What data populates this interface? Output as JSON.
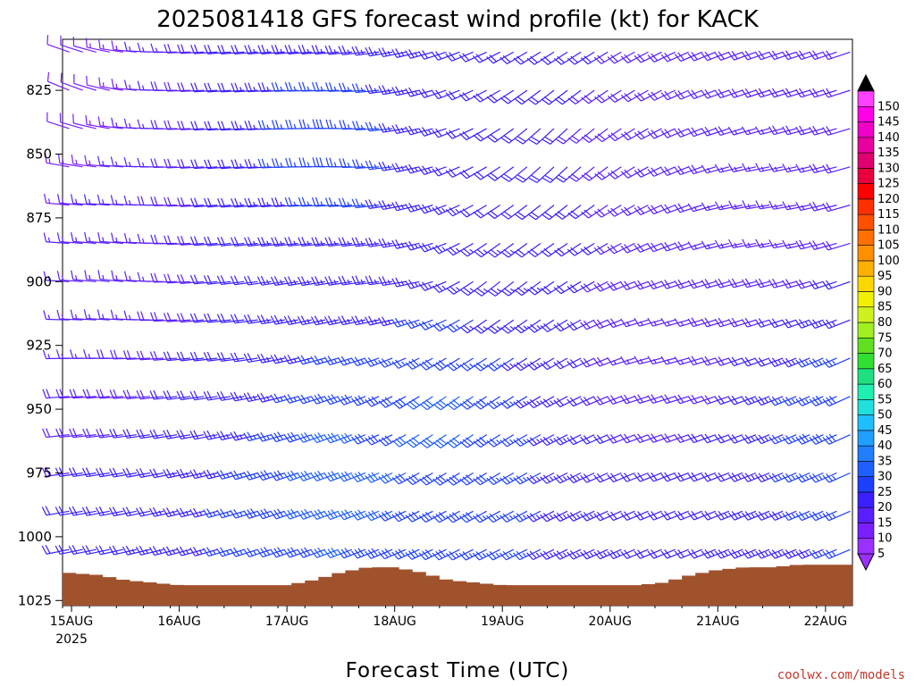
{
  "chart_data": {
    "type": "wind-barb-timeheight",
    "title": "2025081418 GFS forecast wind profile (kt) for KACK",
    "xlabel": "Forecast Time (UTC)",
    "ylabel": "",
    "credit": "coolwx.com/models",
    "y_axis": {
      "units": "hPa",
      "inverted": true,
      "range": [
        1027,
        805
      ],
      "tick_labels": [
        "825",
        "850",
        "875",
        "900",
        "925",
        "950",
        "975",
        "1000",
        "1025"
      ],
      "tick_values": [
        825,
        850,
        875,
        900,
        925,
        950,
        975,
        1000,
        1025
      ]
    },
    "x_axis": {
      "units": "UTC date",
      "range_days": [
        "2025-08-14T22:00Z",
        "2025-08-22T06:00Z"
      ],
      "tick_labels": [
        "15AUG",
        "16AUG",
        "17AUG",
        "18AUG",
        "19AUG",
        "20AUG",
        "21AUG",
        "22AUG"
      ],
      "tick_days": [
        "2025-08-15",
        "2025-08-16",
        "2025-08-17",
        "2025-08-18",
        "2025-08-19",
        "2025-08-20",
        "2025-08-21",
        "2025-08-22"
      ],
      "year_label": "2025"
    },
    "colorbar": {
      "units": "kt",
      "levels": [
        5,
        10,
        15,
        20,
        25,
        30,
        35,
        40,
        45,
        50,
        55,
        60,
        65,
        70,
        75,
        80,
        85,
        90,
        95,
        100,
        105,
        110,
        115,
        120,
        125,
        130,
        135,
        140,
        145,
        150
      ],
      "level_labels": [
        "5",
        "10",
        "15",
        "20",
        "25",
        "30",
        "35",
        "40",
        "45",
        "50",
        "55",
        "60",
        "65",
        "70",
        "75",
        "80",
        "85",
        "90",
        "95",
        "100",
        "105",
        "110",
        "115",
        "120",
        "125",
        "130",
        "135",
        "140",
        "145",
        "150"
      ],
      "colors": [
        "#9b30ff",
        "#7a1fff",
        "#5a1fff",
        "#3a20ff",
        "#1f3fff",
        "#1f5fff",
        "#1f7fff",
        "#1f9fff",
        "#1fbfff",
        "#1fdfdf",
        "#1fefb0",
        "#1fe080",
        "#30e030",
        "#60e020",
        "#a0f020",
        "#d0f020",
        "#f0f000",
        "#ffd700",
        "#ffb000",
        "#ff9000",
        "#ff7000",
        "#ff5000",
        "#ff3000",
        "#ff0000",
        "#e8003c",
        "#e00070",
        "#e800a0",
        "#f000c8",
        "#ff00e8",
        "#ff40ff"
      ],
      "extend_both": true
    },
    "surface_pressure": {
      "units": "hPa",
      "color": "#a0522d",
      "samples": [
        {
          "t": "2025-08-14T22:00Z",
          "p": 1014
        },
        {
          "t": "2025-08-15T06:00Z",
          "p": 1015
        },
        {
          "t": "2025-08-15T12:00Z",
          "p": 1017
        },
        {
          "t": "2025-08-15T18:00Z",
          "p": 1018
        },
        {
          "t": "2025-08-16T00:00Z",
          "p": 1019
        },
        {
          "t": "2025-08-16T06:00Z",
          "p": 1019
        },
        {
          "t": "2025-08-16T12:00Z",
          "p": 1019
        },
        {
          "t": "2025-08-16T18:00Z",
          "p": 1019
        },
        {
          "t": "2025-08-17T00:00Z",
          "p": 1019
        },
        {
          "t": "2025-08-17T06:00Z",
          "p": 1017
        },
        {
          "t": "2025-08-17T12:00Z",
          "p": 1014
        },
        {
          "t": "2025-08-17T18:00Z",
          "p": 1012
        },
        {
          "t": "2025-08-18T00:00Z",
          "p": 1012
        },
        {
          "t": "2025-08-18T06:00Z",
          "p": 1014
        },
        {
          "t": "2025-08-18T12:00Z",
          "p": 1017
        },
        {
          "t": "2025-08-18T18:00Z",
          "p": 1018
        },
        {
          "t": "2025-08-19T00:00Z",
          "p": 1019
        },
        {
          "t": "2025-08-19T06:00Z",
          "p": 1019
        },
        {
          "t": "2025-08-19T12:00Z",
          "p": 1019
        },
        {
          "t": "2025-08-19T18:00Z",
          "p": 1019
        },
        {
          "t": "2025-08-20T00:00Z",
          "p": 1019
        },
        {
          "t": "2025-08-20T06:00Z",
          "p": 1019
        },
        {
          "t": "2025-08-20T12:00Z",
          "p": 1018
        },
        {
          "t": "2025-08-20T18:00Z",
          "p": 1015
        },
        {
          "t": "2025-08-21T00:00Z",
          "p": 1013
        },
        {
          "t": "2025-08-21T06:00Z",
          "p": 1012
        },
        {
          "t": "2025-08-21T12:00Z",
          "p": 1012
        },
        {
          "t": "2025-08-21T18:00Z",
          "p": 1011
        },
        {
          "t": "2025-08-22T00:00Z",
          "p": 1011
        },
        {
          "t": "2025-08-22T06:00Z",
          "p": 1011
        }
      ]
    },
    "wind": {
      "units": "kt",
      "note_sample": "direction=from (deg), speed in kt",
      "levels_hpa": [
        810,
        825,
        840,
        855,
        870,
        885,
        900,
        915,
        930,
        945,
        960,
        975,
        990,
        1005,
        1020
      ],
      "samples": [
        {
          "t": "2025-08-14T22:00Z",
          "p": 825,
          "dir": 300,
          "spd": 10
        },
        {
          "t": "2025-08-15T12:00Z",
          "p": 900,
          "dir": 280,
          "spd": 15
        },
        {
          "t": "2025-08-16T12:00Z",
          "p": 925,
          "dir": 265,
          "spd": 20
        },
        {
          "t": "2025-08-17T12:00Z",
          "p": 850,
          "dir": 275,
          "spd": 30
        },
        {
          "t": "2025-08-17T12:00Z",
          "p": 975,
          "dir": 250,
          "spd": 35
        },
        {
          "t": "2025-08-18T00:00Z",
          "p": 900,
          "dir": 270,
          "spd": 25
        },
        {
          "t": "2025-08-18T12:00Z",
          "p": 950,
          "dir": 230,
          "spd": 35
        },
        {
          "t": "2025-08-19T00:00Z",
          "p": 900,
          "dir": 225,
          "spd": 25
        },
        {
          "t": "2025-08-19T12:00Z",
          "p": 850,
          "dir": 220,
          "spd": 20
        },
        {
          "t": "2025-08-20T12:00Z",
          "p": 925,
          "dir": 260,
          "spd": 15
        },
        {
          "t": "2025-08-21T12:00Z",
          "p": 875,
          "dir": 265,
          "spd": 15
        },
        {
          "t": "2025-08-22T06:00Z",
          "p": 950,
          "dir": 245,
          "spd": 30
        }
      ]
    }
  }
}
